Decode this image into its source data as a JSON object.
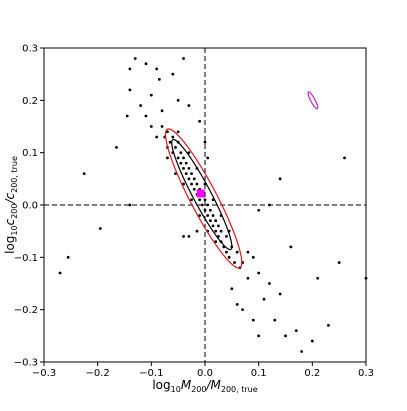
{
  "chart_data": {
    "type": "scatter",
    "xlabel": [
      "log",
      "10",
      "M",
      "200",
      "/M",
      "200, true"
    ],
    "ylabel": [
      "log",
      "10",
      "c",
      "200",
      "/c",
      "200, true"
    ],
    "xlim": [
      -0.3,
      0.3
    ],
    "ylim": [
      -0.3,
      0.3
    ],
    "xticks": [
      {
        "value": -0.3,
        "label": "−0.3"
      },
      {
        "value": -0.2,
        "label": "−0.2"
      },
      {
        "value": -0.1,
        "label": "−0.1"
      },
      {
        "value": 0,
        "label": "0.0"
      },
      0.1,
      0.2,
      0.3
    ],
    "yticks": [
      {
        "value": -0.3,
        "label": "−0.3"
      },
      {
        "value": -0.2,
        "label": "−0.2"
      },
      {
        "value": -0.1,
        "label": "−0.1"
      },
      {
        "value": 0,
        "label": "0.0"
      },
      0.1,
      0.2,
      0.3
    ],
    "vlines": [
      0
    ],
    "hlines": [
      0
    ],
    "series": [
      {
        "color": "#000000",
        "x": [
          -0.27,
          -0.255,
          -0.225,
          -0.195,
          -0.165,
          -0.14,
          -0.145,
          -0.14,
          -0.14,
          -0.13,
          -0.11,
          -0.1,
          -0.12,
          -0.09,
          -0.085,
          -0.06,
          -0.04,
          -0.05,
          -0.03,
          -0.01,
          0.0,
          0.005,
          -0.1,
          -0.11,
          -0.08,
          -0.09,
          -0.07,
          -0.04,
          -0.03,
          -0.015,
          0.1,
          0.12,
          0.14,
          0.16,
          0.14,
          0.11,
          0.08,
          0.09,
          0.1,
          0.13,
          0.15,
          0.17,
          0.2,
          0.23,
          0.18,
          0.21,
          0.25,
          0.26,
          0.3,
          0.06,
          0.05,
          0.07,
          0.08,
          0.09,
          0.1,
          0.12,
          0.07,
          -0.08,
          -0.075,
          -0.07,
          -0.065,
          -0.06,
          -0.06,
          -0.055,
          -0.05,
          -0.05,
          -0.045,
          -0.045,
          -0.04,
          -0.04,
          -0.035,
          -0.035,
          -0.03,
          -0.03,
          -0.025,
          -0.025,
          -0.02,
          -0.02,
          -0.015,
          -0.015,
          -0.01,
          -0.01,
          -0.005,
          -0.005,
          0.0,
          0.0,
          0.005,
          0.005,
          0.01,
          0.01,
          0.015,
          0.015,
          0.02,
          0.02,
          0.025,
          0.025,
          0.03,
          0.03,
          0.035,
          0.04,
          0.04,
          0.045,
          0.05,
          0.055,
          0.06,
          0.065,
          -0.07,
          -0.055,
          -0.04,
          -0.025,
          -0.01,
          0.005,
          0.02,
          -0.05,
          -0.03,
          -0.015,
          0.0,
          0.015,
          0.03,
          0.045
        ],
        "y": [
          -0.13,
          -0.1,
          0.06,
          -0.045,
          0.11,
          0.0,
          0.17,
          0.22,
          0.26,
          0.28,
          0.27,
          0.21,
          0.19,
          0.26,
          0.24,
          0.25,
          0.28,
          0.2,
          0.19,
          0.16,
          0.12,
          0.09,
          0.15,
          0.17,
          0.18,
          0.13,
          0.11,
          -0.06,
          -0.06,
          -0.05,
          -0.01,
          0.0,
          0.05,
          -0.08,
          -0.17,
          -0.18,
          -0.14,
          -0.22,
          -0.25,
          -0.22,
          -0.25,
          -0.24,
          -0.26,
          -0.23,
          -0.28,
          -0.14,
          -0.11,
          0.09,
          -0.14,
          -0.19,
          -0.16,
          -0.11,
          -0.09,
          -0.1,
          -0.13,
          -0.15,
          -0.2,
          0.15,
          0.13,
          0.14,
          0.12,
          0.13,
          0.1,
          0.11,
          0.09,
          0.12,
          0.08,
          0.1,
          0.07,
          0.09,
          0.06,
          0.08,
          0.05,
          0.07,
          0.04,
          0.06,
          0.03,
          0.05,
          0.02,
          0.04,
          0.01,
          0.03,
          0.0,
          0.02,
          -0.01,
          0.01,
          -0.02,
          0.0,
          -0.03,
          -0.01,
          -0.04,
          -0.02,
          -0.05,
          -0.03,
          -0.06,
          -0.04,
          -0.07,
          -0.05,
          -0.08,
          -0.09,
          -0.06,
          -0.1,
          -0.08,
          -0.11,
          -0.09,
          -0.12,
          0.09,
          0.06,
          0.04,
          0.01,
          -0.02,
          -0.05,
          -0.07,
          0.14,
          0.1,
          0.07,
          0.04,
          0.01,
          -0.02,
          -0.05
        ]
      }
    ],
    "ellipses": [
      {
        "center": [
          -0.0025,
          0.0125
        ],
        "semi_axes": [
          0.1487,
          0.025
        ],
        "angle": -63,
        "color": "#e8141c"
      },
      {
        "center": [
          -0.006,
          0.02
        ],
        "semi_axes": [
          0.118,
          0.017
        ],
        "angle": -62.8,
        "color": "#000000"
      },
      {
        "center": [
          0.201,
          0.2
        ],
        "semi_axes": [
          0.018,
          0.004
        ],
        "angle": -62.6,
        "color": "#cc22cc"
      }
    ],
    "marker": {
      "x": -0.008,
      "y": 0.022,
      "color": "#ff00ff"
    }
  }
}
